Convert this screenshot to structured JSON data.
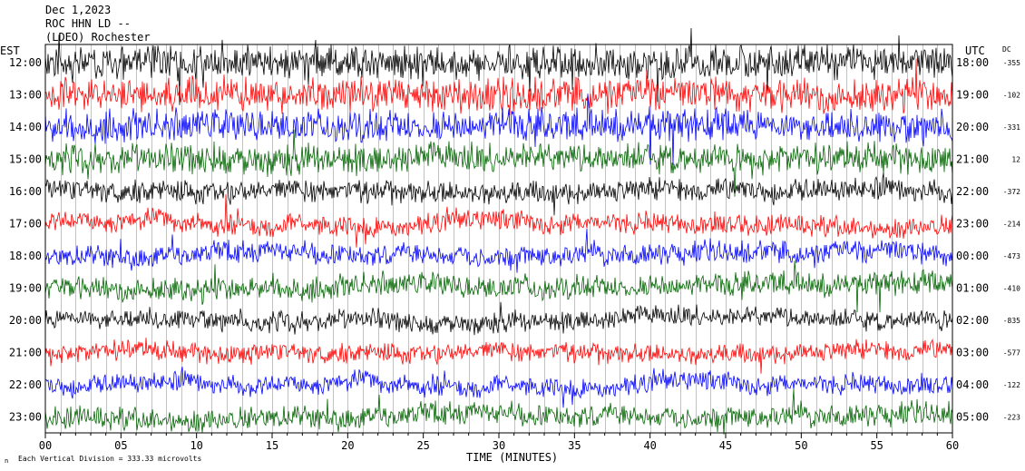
{
  "header": {
    "date": "Dec 1,2023",
    "station": "ROC HHN LD --",
    "network": "(LDEO) Rochester"
  },
  "labels": {
    "left_zone": "EST",
    "right_zone": "UTC",
    "dc_header": "DC",
    "x_axis_title": "TIME (MINUTES)",
    "scale_note": "Each Vertical Division =  333.33 microvolts",
    "corner_mark": "n"
  },
  "chart_data": {
    "type": "line",
    "title": "",
    "xlabel": "TIME (MINUTES)",
    "ylabel": "",
    "xlim": [
      0,
      60
    ],
    "x_ticks": [
      "00",
      "05",
      "10",
      "15",
      "20",
      "25",
      "30",
      "35",
      "40",
      "45",
      "50",
      "55",
      "60"
    ],
    "grid": "vertical lines every minute",
    "traces": [
      {
        "local": "12:00",
        "utc": "18:00",
        "dc": "-355",
        "color": "#000000",
        "activity": 1.0
      },
      {
        "local": "13:00",
        "utc": "19:00",
        "dc": "-102",
        "color": "#ff0000",
        "activity": 1.0
      },
      {
        "local": "14:00",
        "utc": "20:00",
        "dc": "-331",
        "color": "#0000ff",
        "activity": 0.95
      },
      {
        "local": "15:00",
        "utc": "21:00",
        "dc": "12",
        "color": "#006400",
        "activity": 0.85
      },
      {
        "local": "16:00",
        "utc": "22:00",
        "dc": "-372",
        "color": "#000000",
        "activity": 0.55
      },
      {
        "local": "17:00",
        "utc": "23:00",
        "dc": "-214",
        "color": "#ff0000",
        "activity": 0.45
      },
      {
        "local": "18:00",
        "utc": "00:00",
        "dc": "-473",
        "color": "#0000ff",
        "activity": 0.5
      },
      {
        "local": "19:00",
        "utc": "01:00",
        "dc": "-410",
        "color": "#006400",
        "activity": 0.55
      },
      {
        "local": "20:00",
        "utc": "02:00",
        "dc": "-835",
        "color": "#000000",
        "activity": 0.4
      },
      {
        "local": "21:00",
        "utc": "03:00",
        "dc": "-577",
        "color": "#ff0000",
        "activity": 0.4
      },
      {
        "local": "22:00",
        "utc": "04:00",
        "dc": "-122",
        "color": "#0000ff",
        "activity": 0.4
      },
      {
        "local": "23:00",
        "utc": "05:00",
        "dc": "-223",
        "color": "#006400",
        "activity": 0.55
      }
    ]
  }
}
